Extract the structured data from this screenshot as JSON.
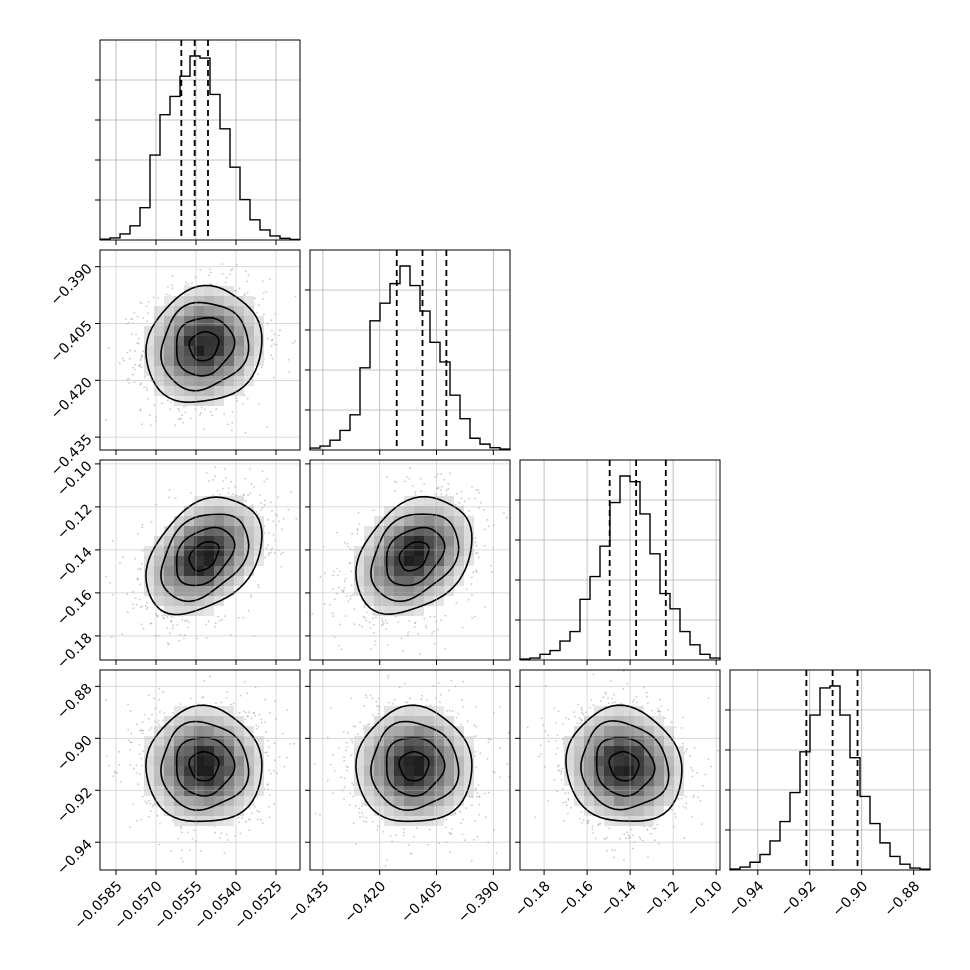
{
  "chart_data": {
    "type": "corner",
    "n_params": 4,
    "grid": true,
    "colors": {
      "line": "#000000",
      "grid": "#b0b0b0",
      "points": "#9a9a9a"
    },
    "parameters": [
      {
        "index": 0,
        "range": [
          -0.0591,
          -0.0516
        ],
        "quantiles": [
          -0.05605,
          -0.05555,
          -0.05505
        ],
        "ticks": [
          "−0.0585",
          "−0.0570",
          "−0.0555",
          "−0.0540",
          "−0.0525"
        ],
        "tick_values": [
          -0.0585,
          -0.057,
          -0.0555,
          -0.054,
          -0.0525
        ]
      },
      {
        "index": 1,
        "range": [
          -0.4384,
          -0.3856
        ],
        "quantiles": [
          -0.4155,
          -0.4087,
          -0.4024
        ],
        "ticks": [
          "−0.390",
          "−0.405",
          "−0.420",
          "−0.435"
        ],
        "tick_values": [
          -0.39,
          -0.405,
          -0.42,
          -0.435
        ]
      },
      {
        "index": 2,
        "range": [
          -0.1912,
          -0.0982
        ],
        "quantiles": [
          -0.1495,
          -0.1372,
          -0.1234
        ],
        "ticks": [
          "−0.10",
          "−0.12",
          "−0.14",
          "−0.16",
          "−0.18"
        ],
        "tick_values": [
          -0.1,
          -0.12,
          -0.14,
          -0.16,
          -0.18
        ]
      },
      {
        "index": 3,
        "range": [
          -0.9507,
          -0.8737
        ],
        "quantiles": [
          -0.9213,
          -0.9112,
          -0.9016
        ],
        "ticks": [
          "−0.88",
          "−0.90",
          "−0.92",
          "−0.94"
        ],
        "tick_values": [
          -0.88,
          -0.9,
          -0.92,
          -0.94
        ]
      }
    ],
    "bottom_ticks": [
      {
        "labels": [
          "−0.0585",
          "−0.0570",
          "−0.0555",
          "−0.0540",
          "−0.0525"
        ],
        "values": [
          -0.0585,
          -0.057,
          -0.0555,
          -0.054,
          -0.0525
        ]
      },
      {
        "labels": [
          "−0.435",
          "−0.420",
          "−0.405",
          "−0.390"
        ],
        "values": [
          -0.435,
          -0.42,
          -0.405,
          -0.39
        ]
      },
      {
        "labels": [
          "−0.18",
          "−0.16",
          "−0.14",
          "−0.12",
          "−0.10"
        ],
        "values": [
          -0.18,
          -0.16,
          -0.14,
          -0.12,
          -0.1
        ]
      },
      {
        "labels": [
          "−0.94",
          "−0.92",
          "−0.90",
          "−0.88"
        ],
        "values": [
          -0.94,
          -0.92,
          -0.9,
          -0.88
        ]
      }
    ],
    "histograms": [
      {
        "param": 0,
        "counts": [
          0.004,
          0.01,
          0.03,
          0.07,
          0.16,
          0.42,
          0.62,
          0.71,
          0.81,
          0.91,
          0.9,
          0.72,
          0.55,
          0.36,
          0.2,
          0.1,
          0.05,
          0.02,
          0.008,
          0.003
        ]
      },
      {
        "param": 1,
        "counts": [
          0.01,
          0.02,
          0.05,
          0.1,
          0.18,
          0.42,
          0.66,
          0.75,
          0.85,
          0.94,
          0.84,
          0.71,
          0.55,
          0.45,
          0.28,
          0.16,
          0.06,
          0.03,
          0.012,
          0.005
        ]
      },
      {
        "param": 2,
        "counts": [
          0.005,
          0.01,
          0.03,
          0.05,
          0.1,
          0.15,
          0.32,
          0.44,
          0.6,
          0.83,
          0.97,
          0.94,
          0.77,
          0.56,
          0.35,
          0.27,
          0.15,
          0.08,
          0.03,
          0.01
        ]
      },
      {
        "param": 3,
        "counts": [
          0.005,
          0.015,
          0.04,
          0.08,
          0.15,
          0.25,
          0.4,
          0.61,
          0.8,
          0.94,
          0.95,
          0.8,
          0.58,
          0.38,
          0.24,
          0.14,
          0.07,
          0.03,
          0.01,
          0.004
        ]
      }
    ],
    "pairs": [
      {
        "x_param": 0,
        "y_param": 1,
        "correlation": 0.1
      },
      {
        "x_param": 0,
        "y_param": 2,
        "correlation": 0.35
      },
      {
        "x_param": 1,
        "y_param": 2,
        "correlation": 0.3
      },
      {
        "x_param": 0,
        "y_param": 3,
        "correlation": 0.0
      },
      {
        "x_param": 1,
        "y_param": 3,
        "correlation": 0.0
      },
      {
        "x_param": 2,
        "y_param": 3,
        "correlation": -0.08
      }
    ],
    "contour_levels_sigma": [
      0.5,
      1.0,
      1.5,
      2.0
    ]
  }
}
